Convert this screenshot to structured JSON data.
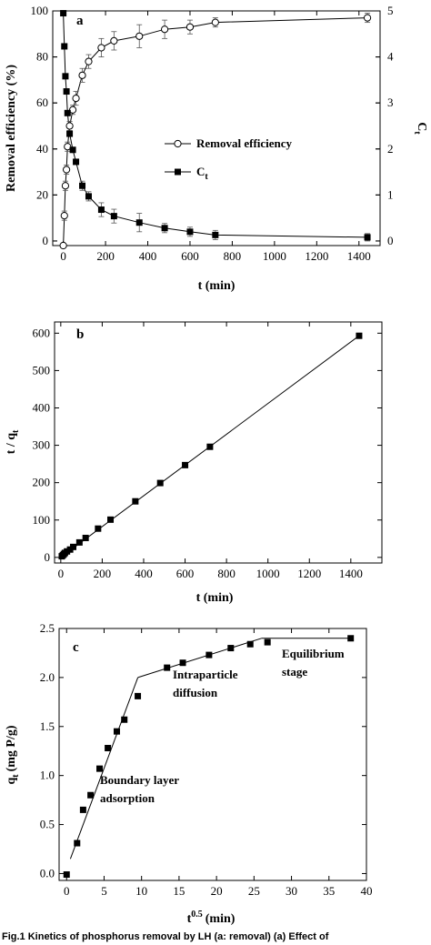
{
  "chart_data": [
    {
      "panel": "a",
      "type": "line",
      "xlabel": "t (min)",
      "ylabel": "Removal efficiency (%)",
      "y2label": "C",
      "y2label_sub": "t",
      "xlim": [
        -50,
        1500
      ],
      "ylim": [
        -2,
        100
      ],
      "y2lim": [
        -0.1,
        5
      ],
      "xticks": [
        0,
        200,
        400,
        600,
        800,
        1000,
        1200,
        1400
      ],
      "yticks": [
        0,
        20,
        40,
        60,
        80,
        100
      ],
      "y2ticks": [
        0,
        1,
        2,
        3,
        4,
        5
      ],
      "legend_position": "center-right",
      "series": [
        {
          "name": "Removal efficiency",
          "axis": "left",
          "marker": "open-circle",
          "x": [
            0,
            5,
            10,
            15,
            20,
            30,
            45,
            60,
            90,
            120,
            180,
            240,
            360,
            480,
            600,
            720,
            1440
          ],
          "y": [
            -2,
            11,
            24,
            31,
            41,
            50,
            57,
            62,
            72,
            78,
            84,
            87,
            89,
            92,
            93,
            95,
            97
          ],
          "err": [
            0,
            2,
            2,
            2,
            2,
            2,
            2,
            3,
            3,
            3,
            4,
            4,
            5,
            4,
            3,
            2,
            2
          ]
        },
        {
          "name": "C",
          "name_sub": "t",
          "axis": "right",
          "marker": "filled-square",
          "x": [
            0,
            5,
            10,
            15,
            20,
            30,
            45,
            60,
            90,
            120,
            180,
            240,
            360,
            480,
            600,
            720,
            1440
          ],
          "y": [
            4.95,
            4.23,
            3.58,
            3.25,
            2.78,
            2.33,
            1.98,
            1.72,
            1.2,
            0.97,
            0.68,
            0.54,
            0.4,
            0.28,
            0.2,
            0.13,
            0.08
          ],
          "err": [
            0,
            0.05,
            0.05,
            0.05,
            0.05,
            0.05,
            0.05,
            0.05,
            0.1,
            0.1,
            0.15,
            0.15,
            0.2,
            0.1,
            0.1,
            0.1,
            0.08
          ]
        }
      ]
    },
    {
      "panel": "b",
      "type": "scatter",
      "xlabel": "t (min)",
      "ylabel": "t / q",
      "ylabel_sub": "t",
      "xlim": [
        -30,
        1550
      ],
      "ylim": [
        -15,
        630
      ],
      "xticks": [
        0,
        200,
        400,
        600,
        800,
        1000,
        1200,
        1400
      ],
      "yticks": [
        0,
        100,
        200,
        300,
        400,
        500,
        600
      ],
      "series": [
        {
          "marker": "filled-square",
          "x": [
            5,
            10,
            15,
            20,
            30,
            45,
            60,
            90,
            120,
            180,
            240,
            360,
            480,
            600,
            720,
            1440
          ],
          "y": [
            3,
            6,
            9,
            12,
            16,
            21,
            28,
            40,
            52,
            77,
            101,
            150,
            199,
            247,
            296,
            593
          ]
        }
      ],
      "fit_line": {
        "x": [
          0,
          1440
        ],
        "y": [
          0,
          593
        ]
      }
    },
    {
      "panel": "c",
      "type": "scatter",
      "xlabel": "t",
      "xlabel_sup": "0.5",
      "xlabel_unit": "(min)",
      "ylabel": "q",
      "ylabel_sub": "t",
      "ylabel_unit": "(mg P/g)",
      "xlim": [
        -1,
        40
      ],
      "ylim": [
        -0.07,
        2.5
      ],
      "xticks": [
        0,
        5,
        10,
        15,
        20,
        25,
        30,
        35,
        40
      ],
      "yticks": [
        0.0,
        0.5,
        1.0,
        1.5,
        2.0,
        2.5
      ],
      "yticks_labels": [
        "0.0",
        "0.5",
        "1.0",
        "1.5",
        "2.0",
        "2.5"
      ],
      "series": [
        {
          "marker": "filled-square",
          "x": [
            0,
            1.4,
            2.2,
            3.2,
            4.4,
            5.5,
            6.7,
            7.7,
            9.5,
            13.4,
            15.5,
            19,
            21.9,
            24.5,
            26.8,
            37.9
          ],
          "y": [
            -0.01,
            0.31,
            0.65,
            0.8,
            1.07,
            1.28,
            1.45,
            1.57,
            1.81,
            2.1,
            2.15,
            2.23,
            2.3,
            2.34,
            2.36,
            2.4
          ]
        }
      ],
      "fit_lines": [
        {
          "x": [
            0.5,
            9.5
          ],
          "y": [
            0.15,
            2.0
          ]
        },
        {
          "x": [
            9.5,
            26
          ],
          "y": [
            2.0,
            2.4
          ]
        },
        {
          "x": [
            26,
            38
          ],
          "y": [
            2.4,
            2.4
          ]
        }
      ],
      "annotations": [
        "Boundary layer",
        "adsorption",
        "Intraparticle",
        "diffusion",
        "Equilibrium",
        "stage"
      ]
    }
  ],
  "caption": "Fig.1  Kinetics of phosphorus removal by LH (a: removal) (a) Effect of"
}
